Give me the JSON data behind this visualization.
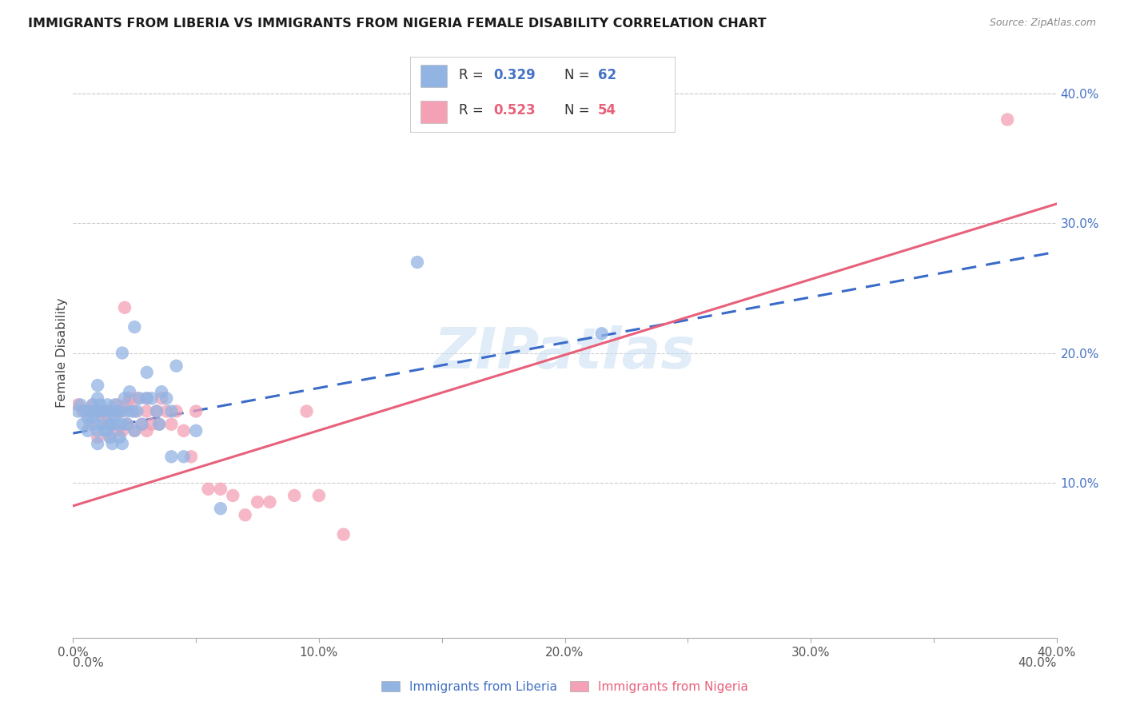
{
  "title": "IMMIGRANTS FROM LIBERIA VS IMMIGRANTS FROM NIGERIA FEMALE DISABILITY CORRELATION CHART",
  "source": "Source: ZipAtlas.com",
  "ylabel": "Female Disability",
  "xlim": [
    0.0,
    0.4
  ],
  "ylim": [
    -0.02,
    0.42
  ],
  "ytick_vals": [
    0.1,
    0.2,
    0.3,
    0.4
  ],
  "ytick_labels": [
    "10.0%",
    "20.0%",
    "30.0%",
    "40.0%"
  ],
  "xtick_vals": [
    0.0,
    0.05,
    0.1,
    0.15,
    0.2,
    0.25,
    0.3,
    0.35,
    0.4
  ],
  "xtick_labels": [
    "0.0%",
    "",
    "10.0%",
    "",
    "20.0%",
    "",
    "30.0%",
    "",
    "40.0%"
  ],
  "liberia_color": "#92b4e3",
  "nigeria_color": "#f4a0b5",
  "liberia_line_color": "#3a6bc9",
  "nigeria_line_color": "#e8607a",
  "liberia_R": 0.329,
  "liberia_N": 62,
  "nigeria_R": 0.523,
  "nigeria_N": 54,
  "watermark": "ZIPatlas",
  "legend_label_liberia": "Immigrants from Liberia",
  "legend_label_nigeria": "Immigrants from Nigeria",
  "liberia_x": [
    0.002,
    0.003,
    0.004,
    0.005,
    0.006,
    0.006,
    0.007,
    0.008,
    0.008,
    0.009,
    0.009,
    0.01,
    0.01,
    0.01,
    0.01,
    0.01,
    0.011,
    0.012,
    0.012,
    0.013,
    0.013,
    0.014,
    0.014,
    0.015,
    0.015,
    0.015,
    0.016,
    0.016,
    0.017,
    0.017,
    0.018,
    0.018,
    0.019,
    0.019,
    0.02,
    0.02,
    0.02,
    0.021,
    0.022,
    0.022,
    0.023,
    0.024,
    0.025,
    0.025,
    0.026,
    0.027,
    0.028,
    0.03,
    0.03,
    0.032,
    0.034,
    0.035,
    0.036,
    0.038,
    0.04,
    0.04,
    0.042,
    0.045,
    0.05,
    0.06,
    0.14,
    0.215
  ],
  "liberia_y": [
    0.155,
    0.16,
    0.145,
    0.155,
    0.14,
    0.15,
    0.155,
    0.15,
    0.16,
    0.145,
    0.155,
    0.13,
    0.14,
    0.155,
    0.165,
    0.175,
    0.16,
    0.145,
    0.155,
    0.14,
    0.155,
    0.14,
    0.16,
    0.135,
    0.145,
    0.155,
    0.13,
    0.145,
    0.15,
    0.16,
    0.145,
    0.155,
    0.135,
    0.155,
    0.13,
    0.145,
    0.2,
    0.165,
    0.145,
    0.155,
    0.17,
    0.155,
    0.14,
    0.22,
    0.155,
    0.165,
    0.145,
    0.165,
    0.185,
    0.165,
    0.155,
    0.145,
    0.17,
    0.165,
    0.155,
    0.12,
    0.19,
    0.12,
    0.14,
    0.08,
    0.27,
    0.215
  ],
  "nigeria_x": [
    0.002,
    0.004,
    0.006,
    0.007,
    0.008,
    0.009,
    0.01,
    0.01,
    0.011,
    0.012,
    0.013,
    0.014,
    0.014,
    0.015,
    0.015,
    0.016,
    0.017,
    0.018,
    0.018,
    0.019,
    0.02,
    0.02,
    0.021,
    0.022,
    0.022,
    0.023,
    0.025,
    0.025,
    0.026,
    0.028,
    0.03,
    0.03,
    0.03,
    0.032,
    0.034,
    0.035,
    0.036,
    0.038,
    0.04,
    0.042,
    0.045,
    0.048,
    0.05,
    0.055,
    0.06,
    0.065,
    0.07,
    0.075,
    0.08,
    0.09,
    0.095,
    0.1,
    0.11,
    0.38
  ],
  "nigeria_y": [
    0.16,
    0.155,
    0.155,
    0.145,
    0.16,
    0.155,
    0.135,
    0.155,
    0.155,
    0.15,
    0.155,
    0.145,
    0.155,
    0.135,
    0.155,
    0.145,
    0.155,
    0.14,
    0.16,
    0.155,
    0.14,
    0.155,
    0.235,
    0.145,
    0.16,
    0.165,
    0.14,
    0.155,
    0.165,
    0.145,
    0.14,
    0.155,
    0.165,
    0.145,
    0.155,
    0.145,
    0.165,
    0.155,
    0.145,
    0.155,
    0.14,
    0.12,
    0.155,
    0.095,
    0.095,
    0.09,
    0.075,
    0.085,
    0.085,
    0.09,
    0.155,
    0.09,
    0.06,
    0.38
  ],
  "liberia_line_x": [
    0.0,
    0.4
  ],
  "liberia_line_y": [
    0.138,
    0.278
  ],
  "nigeria_line_x": [
    0.0,
    0.4
  ],
  "nigeria_line_y": [
    0.082,
    0.315
  ]
}
